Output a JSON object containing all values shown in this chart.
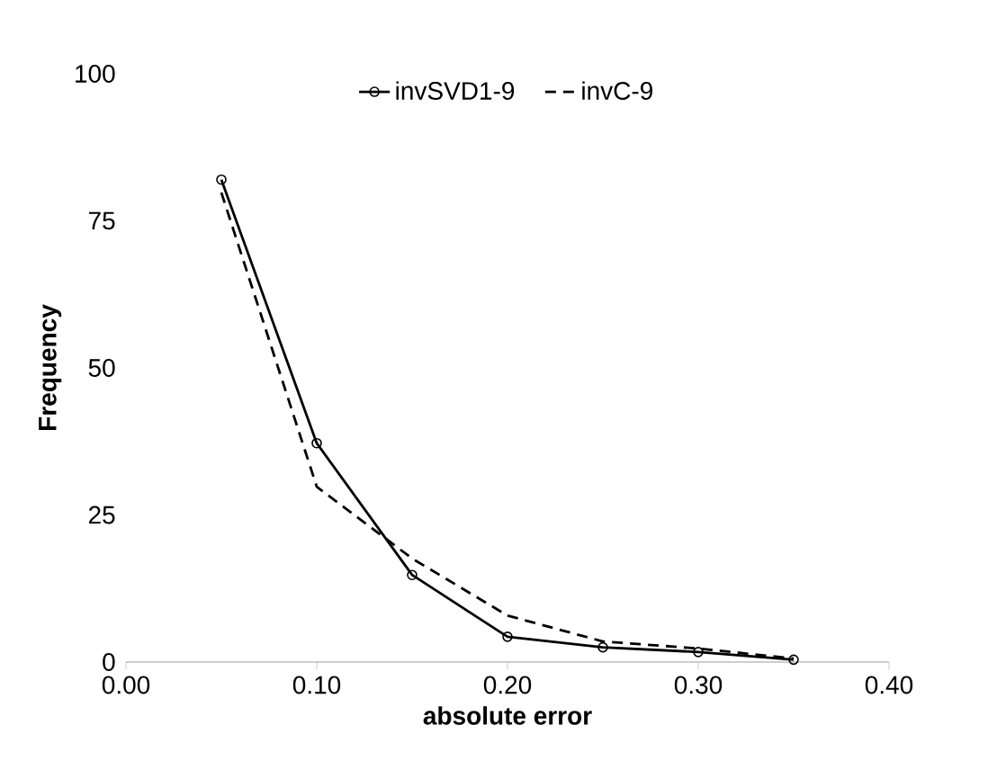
{
  "chart_data": {
    "type": "line",
    "xlabel": "absolute error",
    "ylabel": "Frequency",
    "xlim": [
      0,
      0.4
    ],
    "xticks": [
      {
        "value": 0,
        "label": "0.00"
      },
      {
        "value": 0.1,
        "label": "0.10"
      },
      {
        "value": 0.2,
        "label": "0.20"
      },
      {
        "value": 0.3,
        "label": "0.30"
      },
      {
        "value": 0.4,
        "label": "0.40"
      }
    ],
    "ylim": [
      0,
      100
    ],
    "yticks": [
      0,
      25,
      50,
      75,
      100
    ],
    "x": [
      0.05,
      0.1,
      0.15,
      0.2,
      0.25,
      0.3,
      0.35
    ],
    "legend": "top",
    "series": [
      {
        "name": "invSVD1-9",
        "color": "#000000",
        "marker": "circle",
        "line_style": "solid",
        "values": [
          82,
          37.2,
          14.8,
          4.3,
          2.5,
          1.7,
          0.4
        ]
      },
      {
        "name": "invC-9",
        "color": "#000000",
        "marker": "none",
        "line_style": "dashed",
        "values": [
          79.8,
          29.8,
          17.6,
          7.9,
          3.5,
          2.3,
          0.6
        ]
      }
    ]
  }
}
